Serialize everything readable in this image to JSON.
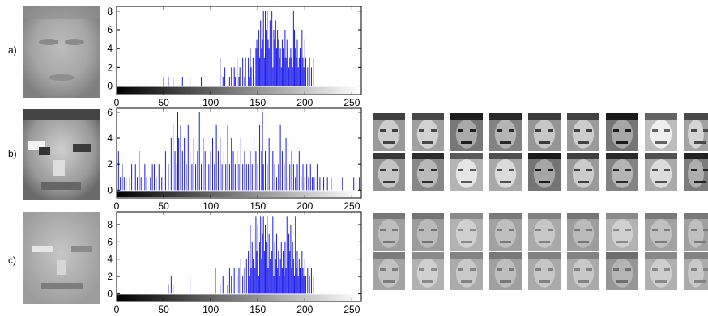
{
  "chart_data": [
    {
      "type": "bar",
      "panel_label": "a)",
      "xlim": [
        0,
        260
      ],
      "ylim": [
        -0.9,
        8.5
      ],
      "xticks": [
        0,
        50,
        100,
        150,
        200,
        250
      ],
      "yticks": [
        0,
        2,
        4,
        6,
        8
      ],
      "xticklabels": [
        "0",
        "50",
        "100",
        "150",
        "200",
        "250"
      ],
      "yticklabels": [
        "0",
        "2",
        "4",
        "6",
        "8"
      ],
      "x": [
        50,
        55,
        60,
        70,
        78,
        90,
        96,
        110,
        113,
        115,
        120,
        122,
        125,
        126,
        128,
        130,
        131,
        134,
        136,
        137,
        140,
        141,
        142,
        143,
        145,
        146,
        148,
        149,
        150,
        151,
        152,
        153,
        154,
        155,
        156,
        157,
        158,
        159,
        160,
        161,
        162,
        163,
        164,
        165,
        166,
        167,
        168,
        169,
        170,
        171,
        172,
        173,
        174,
        175,
        176,
        177,
        178,
        179,
        180,
        181,
        182,
        183,
        184,
        185,
        186,
        187,
        188,
        189,
        190,
        191,
        192,
        193,
        194,
        195,
        196,
        197,
        198,
        199,
        200,
        201,
        203,
        205,
        207,
        209
      ],
      "values": [
        1,
        1,
        1,
        1,
        1,
        1,
        1,
        3,
        1,
        2,
        1,
        2,
        2,
        1,
        3,
        1,
        2,
        3,
        1,
        3,
        3,
        1,
        4,
        2,
        3,
        1,
        4,
        5,
        4,
        6,
        3,
        7,
        4,
        5,
        8,
        3,
        8,
        6,
        8,
        5,
        4,
        7,
        3,
        8,
        2,
        6,
        5,
        7,
        4,
        6,
        5,
        3,
        4,
        2,
        5,
        4,
        3,
        6,
        3,
        5,
        4,
        2,
        3,
        4,
        3,
        2,
        8,
        6,
        4,
        3,
        5,
        2,
        3,
        4,
        2,
        6,
        3,
        2,
        5,
        3,
        2,
        3,
        2,
        3
      ],
      "color": "#1a1aee"
    },
    {
      "type": "bar",
      "panel_label": "b)",
      "xlim": [
        0,
        260
      ],
      "ylim": [
        -0.6,
        6.3
      ],
      "xticks": [
        0,
        50,
        100,
        150,
        200,
        250
      ],
      "yticks": [
        0,
        2,
        4,
        6
      ],
      "xticklabels": [
        "0",
        "50",
        "100",
        "150",
        "200",
        "250"
      ],
      "yticklabels": [
        "0",
        "2",
        "4",
        "6"
      ],
      "x": [
        2,
        4,
        6,
        8,
        10,
        14,
        16,
        20,
        22,
        24,
        26,
        30,
        32,
        36,
        38,
        40,
        42,
        45,
        48,
        52,
        55,
        58,
        60,
        62,
        64,
        65,
        66,
        68,
        70,
        72,
        74,
        76,
        78,
        80,
        82,
        84,
        86,
        88,
        90,
        92,
        94,
        96,
        98,
        100,
        102,
        104,
        106,
        108,
        110,
        112,
        114,
        116,
        118,
        120,
        122,
        124,
        126,
        128,
        130,
        132,
        134,
        136,
        138,
        140,
        142,
        144,
        146,
        148,
        150,
        152,
        154,
        155,
        156,
        158,
        160,
        162,
        164,
        166,
        168,
        170,
        172,
        174,
        176,
        178,
        180,
        182,
        184,
        186,
        188,
        190,
        192,
        194,
        196,
        198,
        200,
        202,
        204,
        206,
        208,
        210,
        213,
        216,
        220,
        224,
        228,
        232,
        240,
        252,
        258
      ],
      "values": [
        3,
        1,
        2,
        1,
        1,
        1,
        2,
        2,
        1,
        3,
        1,
        2,
        1,
        1,
        2,
        2,
        1,
        2,
        1,
        3,
        2,
        4,
        5,
        3,
        2,
        6,
        4,
        5,
        3,
        4,
        2,
        5,
        3,
        2,
        4,
        2,
        3,
        6,
        2,
        4,
        3,
        5,
        2,
        3,
        4,
        2,
        5,
        3,
        4,
        2,
        3,
        2,
        5,
        2,
        4,
        3,
        2,
        3,
        2,
        4,
        2,
        3,
        2,
        2,
        3,
        2,
        4,
        3,
        2,
        5,
        3,
        6,
        2,
        3,
        2,
        4,
        2,
        3,
        2,
        1,
        2,
        5,
        3,
        2,
        4,
        1,
        2,
        3,
        2,
        1,
        2,
        3,
        1,
        2,
        1,
        2,
        1,
        2,
        1,
        1,
        2,
        1,
        1,
        1,
        1,
        1,
        1,
        1,
        1
      ],
      "color": "#1a1aee"
    },
    {
      "type": "bar",
      "panel_label": "c)",
      "xlim": [
        0,
        260
      ],
      "ylim": [
        -0.9,
        9.5
      ],
      "xticks": [
        0,
        50,
        100,
        150,
        200,
        250
      ],
      "yticks": [
        0,
        2,
        4,
        6,
        8
      ],
      "xticklabels": [
        "0",
        "50",
        "100",
        "150",
        "200",
        "250"
      ],
      "yticklabels": [
        "0",
        "2",
        "4",
        "6",
        "8"
      ],
      "x": [
        55,
        58,
        60,
        78,
        96,
        105,
        110,
        113,
        118,
        120,
        122,
        125,
        128,
        130,
        132,
        134,
        136,
        138,
        140,
        141,
        142,
        143,
        144,
        145,
        146,
        147,
        148,
        149,
        150,
        151,
        152,
        153,
        154,
        155,
        156,
        157,
        158,
        159,
        160,
        161,
        162,
        163,
        164,
        165,
        166,
        167,
        168,
        169,
        170,
        171,
        172,
        173,
        174,
        175,
        176,
        177,
        178,
        179,
        180,
        181,
        182,
        183,
        184,
        185,
        186,
        187,
        188,
        189,
        190,
        191,
        192,
        193,
        194,
        195,
        196,
        197,
        198,
        199,
        200,
        201,
        203,
        205,
        207,
        209
      ],
      "values": [
        1,
        2,
        1,
        2,
        1,
        3,
        1,
        2,
        1,
        3,
        2,
        3,
        2,
        3,
        4,
        2,
        3,
        4,
        5,
        2,
        8,
        3,
        6,
        4,
        7,
        3,
        9,
        5,
        8,
        2,
        6,
        9,
        4,
        7,
        9,
        5,
        8,
        6,
        9,
        3,
        7,
        4,
        8,
        5,
        9,
        2,
        6,
        4,
        7,
        3,
        5,
        2,
        4,
        6,
        3,
        5,
        2,
        6,
        3,
        9,
        4,
        7,
        5,
        8,
        3,
        6,
        4,
        2,
        9,
        3,
        5,
        2,
        4,
        3,
        2,
        5,
        3,
        2,
        4,
        2,
        3,
        2,
        3,
        2
      ],
      "color": "#1a1aee"
    }
  ],
  "face_panels": {
    "b_bg": "#b8b8b8",
    "c_bg": "#b4b4b4"
  }
}
